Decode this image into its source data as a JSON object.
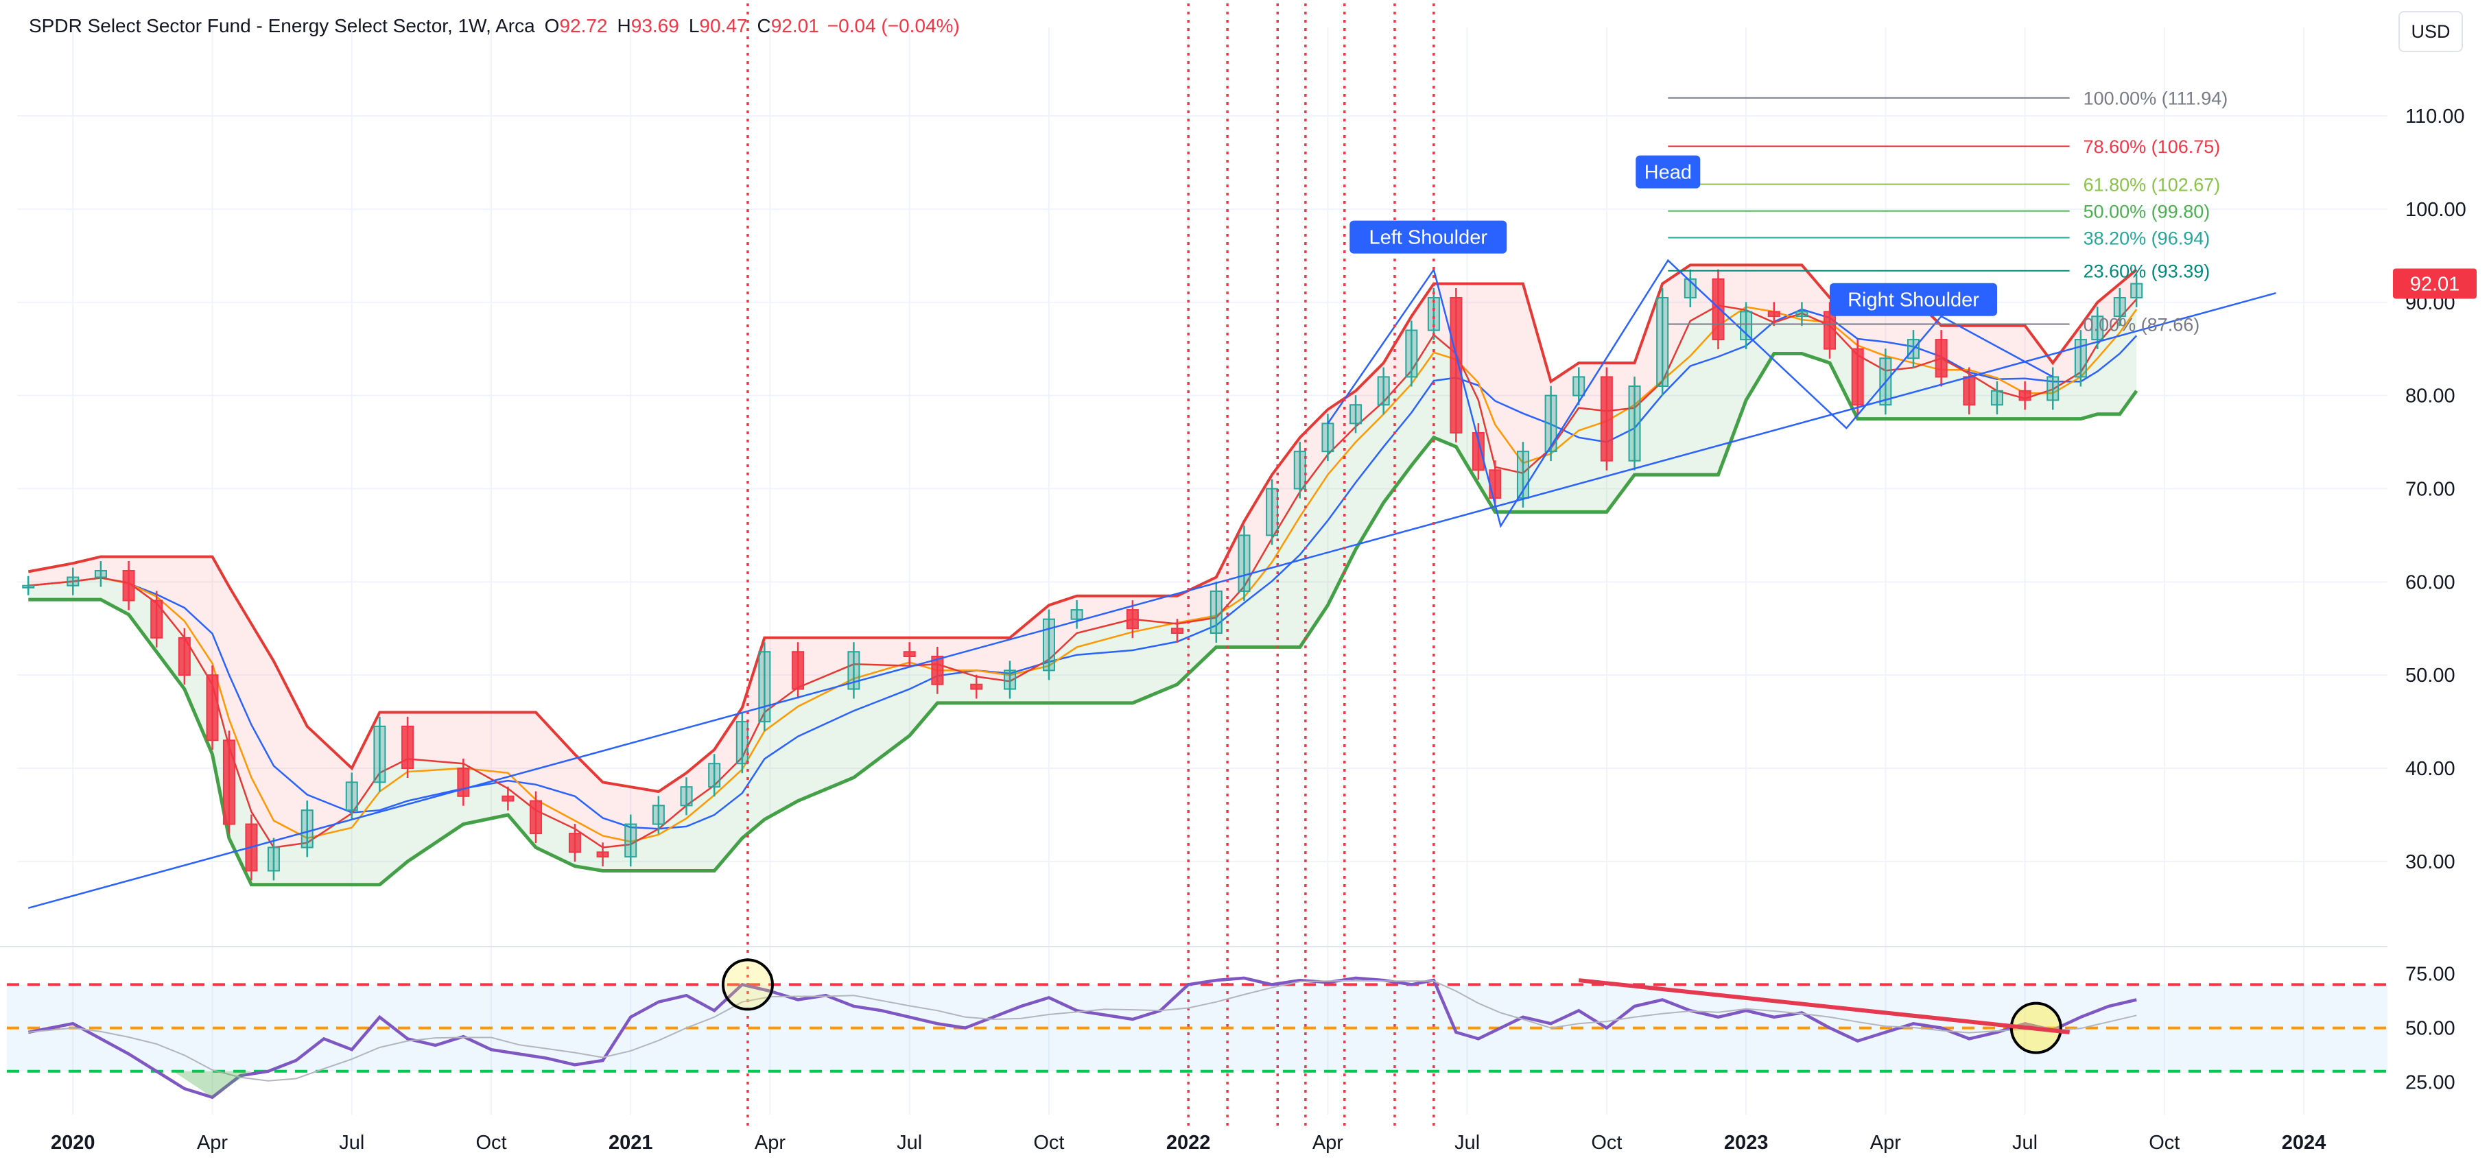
{
  "header": {
    "title": "SPDR Select Sector Fund - Energy Select Sector, 1W, Arca",
    "open_label": "O",
    "open": "92.72",
    "high_label": "H",
    "high": "93.69",
    "low_label": "L",
    "low": "90.47",
    "close_label": "C",
    "close": "92.01",
    "change": "−0.04 (−0.04%)"
  },
  "currency": "USD",
  "last_price": "92.01",
  "colors": {
    "up": "#26a69a",
    "down": "#f23645",
    "ema_fast": "#e53935",
    "ema_mid": "#ff9800",
    "ema_slow": "#2962ff",
    "support": "#43a047",
    "resistance": "#e53935",
    "rsi": "#7e57c2",
    "trendline": "#2962ff",
    "badge": "#2962ff"
  },
  "chart_data": [
    {
      "type": "candlestick",
      "title": "SPDR Select Sector Fund - Energy Select Sector, 1W, Arca",
      "x_tick_labels": [
        "2020",
        "Apr",
        "Jul",
        "Oct",
        "2021",
        "Apr",
        "Jul",
        "Oct",
        "2022",
        "Apr",
        "Jul",
        "Oct",
        "2023",
        "Apr",
        "Jul",
        "Oct",
        "2024"
      ],
      "y_tick_labels": [
        "110.00",
        "100.00",
        "90.00",
        "80.00",
        "70.00",
        "60.00",
        "50.00",
        "40.00",
        "30.00"
      ],
      "ylim": [
        21.6,
        119.5
      ],
      "series": [
        {
          "values": [
            [
              2019.92,
              59.6
            ],
            [
              2020.0,
              60.5
            ],
            [
              2020.05,
              61.2
            ],
            [
              2020.1,
              58.0
            ],
            [
              2020.15,
              54.0
            ],
            [
              2020.2,
              50.0
            ],
            [
              2020.25,
              43.0
            ],
            [
              2020.28,
              34.0
            ],
            [
              2020.32,
              29.0
            ],
            [
              2020.36,
              31.5
            ],
            [
              2020.42,
              35.5
            ],
            [
              2020.5,
              38.5
            ],
            [
              2020.55,
              44.5
            ],
            [
              2020.6,
              40.0
            ],
            [
              2020.7,
              37.0
            ],
            [
              2020.78,
              36.5
            ],
            [
              2020.83,
              33.0
            ],
            [
              2020.9,
              31.0
            ],
            [
              2020.95,
              30.5
            ],
            [
              2021.0,
              34.0
            ],
            [
              2021.05,
              36.0
            ],
            [
              2021.1,
              38.0
            ],
            [
              2021.15,
              40.5
            ],
            [
              2021.2,
              45.0
            ],
            [
              2021.24,
              52.5
            ],
            [
              2021.3,
              48.5
            ],
            [
              2021.4,
              52.5
            ],
            [
              2021.5,
              52.0
            ],
            [
              2021.55,
              49.0
            ],
            [
              2021.62,
              48.5
            ],
            [
              2021.68,
              50.5
            ],
            [
              2021.75,
              56.0
            ],
            [
              2021.8,
              57.0
            ],
            [
              2021.9,
              55.0
            ],
            [
              2021.98,
              54.5
            ],
            [
              2022.05,
              59.0
            ],
            [
              2022.1,
              65.0
            ],
            [
              2022.15,
              70.0
            ],
            [
              2022.2,
              74.0
            ],
            [
              2022.25,
              77.0
            ],
            [
              2022.3,
              79.0
            ],
            [
              2022.35,
              82.0
            ],
            [
              2022.4,
              87.0
            ],
            [
              2022.44,
              90.5
            ],
            [
              2022.48,
              76.0
            ],
            [
              2022.52,
              72.0
            ],
            [
              2022.55,
              69.0
            ],
            [
              2022.6,
              74.0
            ],
            [
              2022.65,
              80.0
            ],
            [
              2022.7,
              82.0
            ],
            [
              2022.75,
              73.0
            ],
            [
              2022.8,
              81.0
            ],
            [
              2022.85,
              90.5
            ],
            [
              2022.9,
              92.5
            ],
            [
              2022.95,
              86.0
            ],
            [
              2023.0,
              89.0
            ],
            [
              2023.05,
              88.5
            ],
            [
              2023.1,
              89.0
            ],
            [
              2023.15,
              85.0
            ],
            [
              2023.2,
              79.0
            ],
            [
              2023.25,
              84.0
            ],
            [
              2023.3,
              86.0
            ],
            [
              2023.35,
              82.0
            ],
            [
              2023.4,
              79.0
            ],
            [
              2023.45,
              80.5
            ],
            [
              2023.5,
              79.5
            ],
            [
              2023.55,
              82.0
            ],
            [
              2023.6,
              86.0
            ],
            [
              2023.63,
              88.5
            ],
            [
              2023.67,
              90.5
            ],
            [
              2023.7,
              92.0
            ]
          ]
        }
      ],
      "fibonacci_levels": [
        {
          "label": "100.00% (111.94)",
          "value": 111.94,
          "color": "#787b86"
        },
        {
          "label": "78.60% (106.75)",
          "value": 106.75,
          "color": "#f23645"
        },
        {
          "label": "61.80% (102.67)",
          "value": 102.67,
          "color": "#8bc34a"
        },
        {
          "label": "50.00% (99.80)",
          "value": 99.8,
          "color": "#4caf50"
        },
        {
          "label": "38.20% (96.94)",
          "value": 96.94,
          "color": "#26a69a"
        },
        {
          "label": "23.60% (93.39)",
          "value": 93.39,
          "color": "#00897b"
        },
        {
          "label": "0.00% (87.66)",
          "value": 87.66,
          "color": "#787b86"
        }
      ],
      "annotations": [
        {
          "label": "Left Shoulder",
          "x": 2022.43,
          "y": 97.0
        },
        {
          "label": "Head",
          "x": 2022.86,
          "y": 104.0
        },
        {
          "label": "Right Shoulder",
          "x": 2023.3,
          "y": 90.3
        }
      ],
      "trendline": {
        "from": [
          2019.92,
          25.0
        ],
        "to": [
          2023.95,
          91.0
        ]
      },
      "vertical_markers": [
        2021.21,
        2022.0,
        2022.07,
        2022.16,
        2022.21,
        2022.28,
        2022.37,
        2022.44
      ]
    },
    {
      "type": "line",
      "y_tick_labels": [
        "75.00",
        "50.00",
        "25.00"
      ],
      "ylim": [
        10,
        85
      ],
      "levels": [
        {
          "value": 70,
          "color": "#f23645"
        },
        {
          "value": 50,
          "color": "#ff9800"
        },
        {
          "value": 30,
          "color": "#00c853"
        }
      ],
      "series": [
        {
          "values": [
            [
              2019.92,
              48
            ],
            [
              2020.0,
              52
            ],
            [
              2020.05,
              45
            ],
            [
              2020.1,
              38
            ],
            [
              2020.15,
              30
            ],
            [
              2020.2,
              22
            ],
            [
              2020.25,
              18
            ],
            [
              2020.3,
              28
            ],
            [
              2020.35,
              30
            ],
            [
              2020.4,
              35
            ],
            [
              2020.45,
              45
            ],
            [
              2020.5,
              40
            ],
            [
              2020.55,
              55
            ],
            [
              2020.6,
              45
            ],
            [
              2020.65,
              42
            ],
            [
              2020.7,
              46
            ],
            [
              2020.75,
              40
            ],
            [
              2020.8,
              38
            ],
            [
              2020.85,
              36
            ],
            [
              2020.9,
              33
            ],
            [
              2020.95,
              35
            ],
            [
              2021.0,
              55
            ],
            [
              2021.05,
              62
            ],
            [
              2021.1,
              65
            ],
            [
              2021.15,
              58
            ],
            [
              2021.2,
              70
            ],
            [
              2021.25,
              67
            ],
            [
              2021.3,
              63
            ],
            [
              2021.35,
              65
            ],
            [
              2021.4,
              60
            ],
            [
              2021.45,
              58
            ],
            [
              2021.5,
              55
            ],
            [
              2021.55,
              52
            ],
            [
              2021.6,
              50
            ],
            [
              2021.65,
              55
            ],
            [
              2021.7,
              60
            ],
            [
              2021.75,
              64
            ],
            [
              2021.8,
              58
            ],
            [
              2021.85,
              56
            ],
            [
              2021.9,
              54
            ],
            [
              2021.95,
              58
            ],
            [
              2022.0,
              70
            ],
            [
              2022.05,
              72
            ],
            [
              2022.1,
              73
            ],
            [
              2022.15,
              70
            ],
            [
              2022.2,
              72
            ],
            [
              2022.25,
              71
            ],
            [
              2022.3,
              73
            ],
            [
              2022.35,
              72
            ],
            [
              2022.4,
              70
            ],
            [
              2022.44,
              72
            ],
            [
              2022.48,
              48
            ],
            [
              2022.52,
              45
            ],
            [
              2022.56,
              50
            ],
            [
              2022.6,
              55
            ],
            [
              2022.65,
              52
            ],
            [
              2022.7,
              58
            ],
            [
              2022.75,
              50
            ],
            [
              2022.8,
              60
            ],
            [
              2022.85,
              63
            ],
            [
              2022.9,
              58
            ],
            [
              2022.95,
              55
            ],
            [
              2023.0,
              58
            ],
            [
              2023.05,
              55
            ],
            [
              2023.1,
              57
            ],
            [
              2023.15,
              50
            ],
            [
              2023.2,
              44
            ],
            [
              2023.25,
              48
            ],
            [
              2023.3,
              52
            ],
            [
              2023.35,
              50
            ],
            [
              2023.4,
              45
            ],
            [
              2023.45,
              48
            ],
            [
              2023.5,
              52
            ],
            [
              2023.55,
              49
            ],
            [
              2023.6,
              55
            ],
            [
              2023.65,
              60
            ],
            [
              2023.7,
              63
            ]
          ]
        }
      ]
    }
  ]
}
